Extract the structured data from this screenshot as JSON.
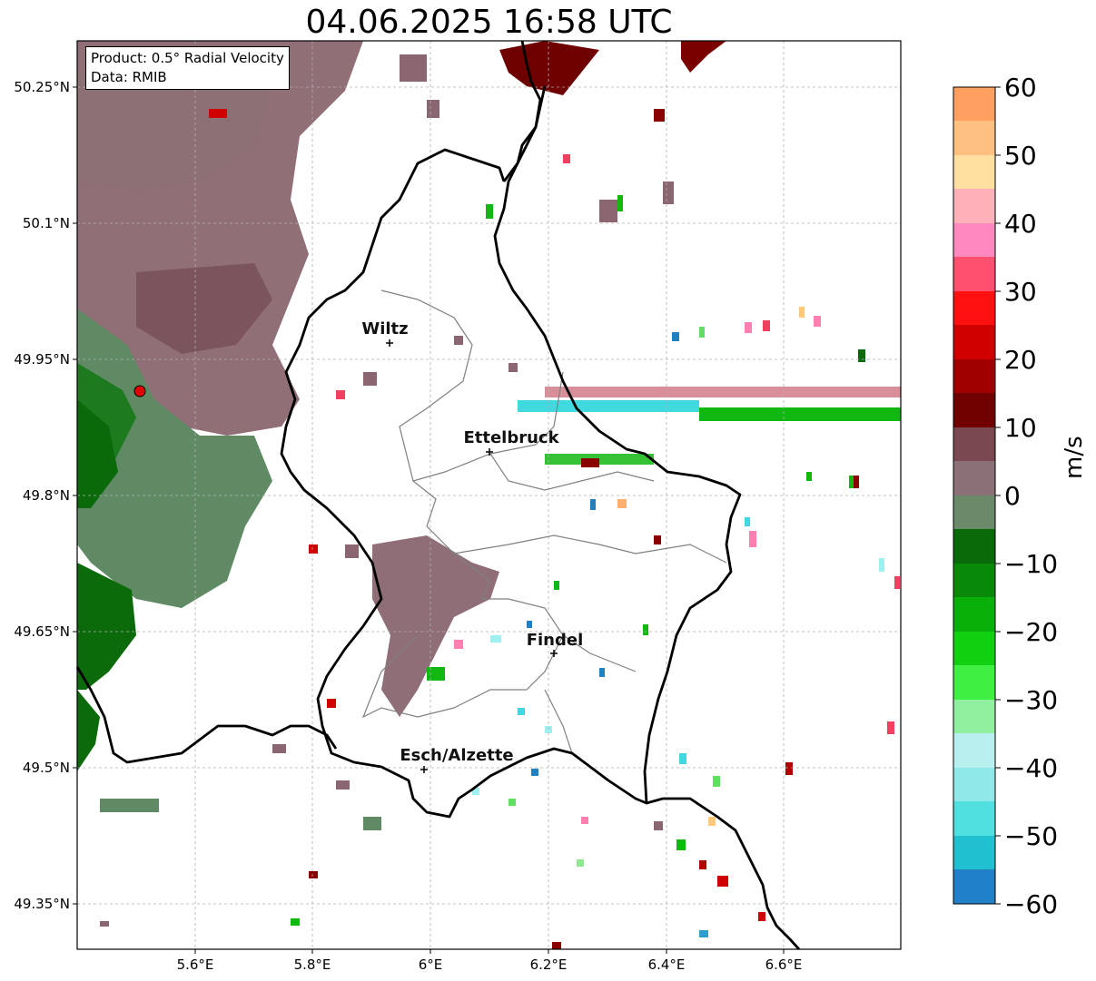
{
  "title": "04.06.2025 16:58 UTC",
  "info_box": {
    "product": "Product: 0.5° Radial Velocity",
    "data": "Data: RMIB"
  },
  "axes": {
    "x_ticks": [
      "5.6°E",
      "5.8°E",
      "6°E",
      "6.2°E",
      "6.4°E",
      "6.6°E"
    ],
    "y_ticks": [
      "50.25°N",
      "50.1°N",
      "49.95°N",
      "49.8°N",
      "49.65°N",
      "49.5°N",
      "49.35°N"
    ],
    "lon_range": [
      5.4,
      6.8
    ],
    "lat_range": [
      49.3,
      50.3
    ]
  },
  "cities": [
    {
      "name": "Wiltz",
      "lon": 5.93,
      "lat": 49.967
    },
    {
      "name": "Ettelbruck",
      "lon": 6.1,
      "lat": 49.848
    },
    {
      "name": "Findel",
      "lon": 6.21,
      "lat": 49.627
    },
    {
      "name": "Esch/Alzette",
      "lon": 5.98,
      "lat": 49.498
    }
  ],
  "radar_site": {
    "lon": 5.505,
    "lat": 49.915,
    "color": "#e00000"
  },
  "colorbar": {
    "label": "m/s",
    "min": -60,
    "max": 60,
    "ticks": [
      "60",
      "50",
      "40",
      "30",
      "20",
      "10",
      "0",
      "−10",
      "−20",
      "−30",
      "−40",
      "−50",
      "−60"
    ]
  }
}
